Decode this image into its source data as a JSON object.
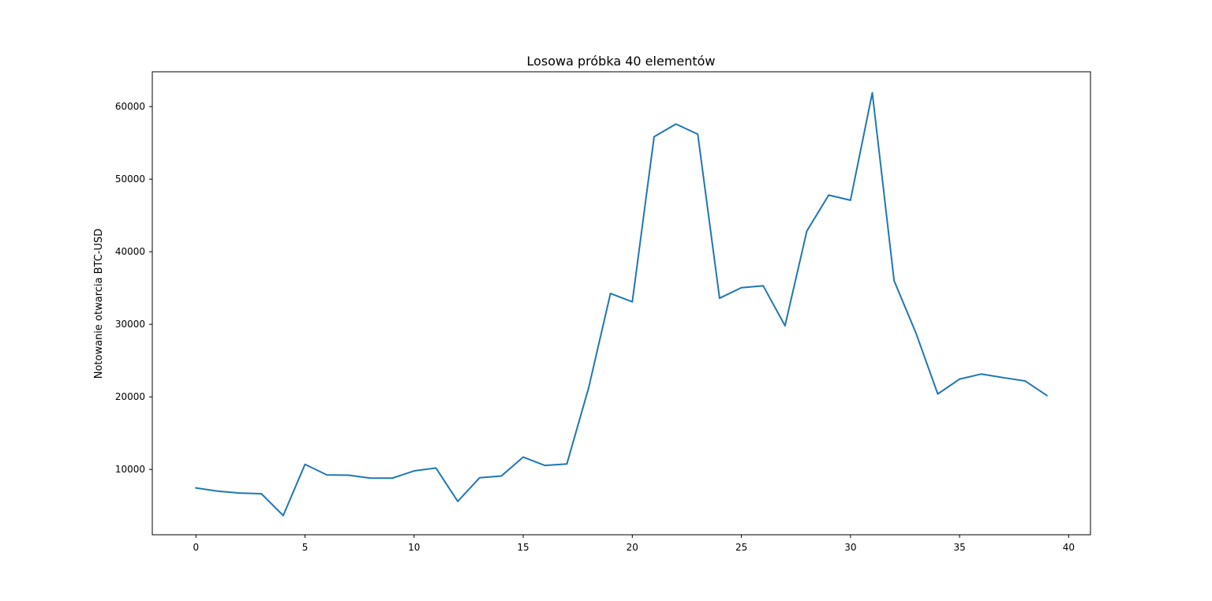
{
  "chart_data": {
    "type": "line",
    "title": "Losowa próbka 40 elementów",
    "xlabel": "",
    "ylabel": "Notowanie otwarcia BTC-USD",
    "xlim": [
      -2,
      41
    ],
    "ylim": [
      1000,
      64800
    ],
    "xticks": [
      0,
      5,
      10,
      15,
      20,
      25,
      30,
      35,
      40
    ],
    "yticks": [
      10000,
      20000,
      30000,
      40000,
      50000,
      60000
    ],
    "grid": false,
    "legend": "none",
    "series": [
      {
        "color": "#1f77b4",
        "x": [
          0,
          1,
          2,
          3,
          4,
          5,
          6,
          7,
          8,
          9,
          10,
          11,
          12,
          13,
          14,
          15,
          16,
          17,
          18,
          19,
          20,
          21,
          22,
          23,
          24,
          25,
          26,
          27,
          28,
          29,
          30,
          31,
          32,
          33,
          34,
          35,
          36,
          37,
          38,
          39
        ],
        "values": [
          7450,
          7000,
          6750,
          6650,
          3650,
          10700,
          9250,
          9200,
          8800,
          8800,
          9800,
          10200,
          5600,
          8850,
          9100,
          11700,
          10550,
          10750,
          21250,
          34250,
          33100,
          55850,
          57600,
          56200,
          33600,
          35050,
          35300,
          29800,
          42850,
          47800,
          47100,
          61900,
          36000,
          28800,
          20400,
          22450,
          23150,
          22650,
          22200,
          20200
        ]
      }
    ]
  }
}
